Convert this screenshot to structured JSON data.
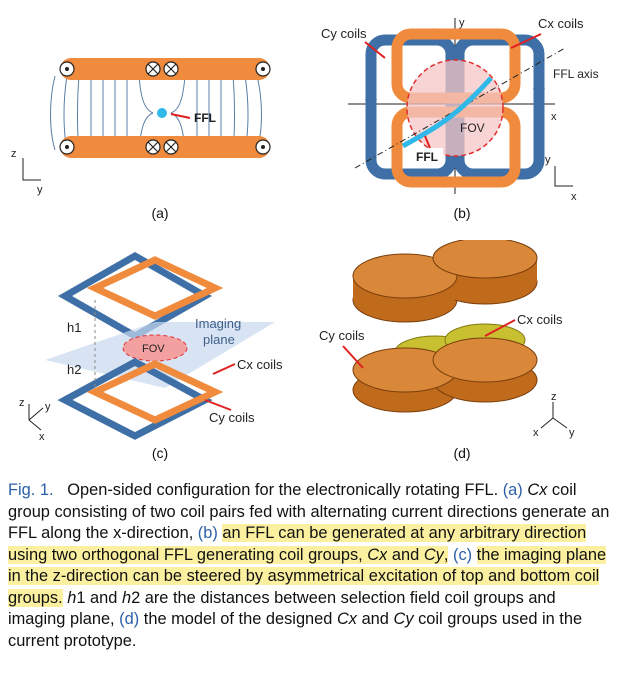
{
  "panel_a": {
    "label": "FFL",
    "axis_z": "z",
    "axis_y": "y",
    "sublabel": "(a)"
  },
  "panel_b": {
    "cy_label": "Cy coils",
    "cx_label": "Cx coils",
    "ffl_axis": "FFL axis",
    "fov": "FOV",
    "ffl": "FFL",
    "axis_y": "y",
    "axis_x": "x",
    "sublabel": "(b)"
  },
  "panel_c": {
    "h1": "h1",
    "h2": "h2",
    "imaging": "Imaging",
    "plane": "plane",
    "fov": "FOV",
    "cx_label": "Cx coils",
    "cy_label": "Cy coils",
    "axis_z": "z",
    "axis_y": "y",
    "axis_x": "x",
    "sublabel": "(c)"
  },
  "panel_d": {
    "cy_label": "Cy coils",
    "cx_label": "Cx coils",
    "axis_z": "z",
    "axis_x": "x",
    "axis_y": "y",
    "sublabel": "(d)"
  },
  "caption": {
    "fig": "Fig. 1.",
    "t1": "Open-sided configuration for the electronically rotating FFL.",
    "a": "(a)",
    "t2_i": "Cx",
    "t2": " coil group consisting of two coil pairs fed with alternating current directions generate an FFL along the x-direction, ",
    "b": "(b)",
    "t3": "an FFL can be generated at any arbitrary direction using two orthogonal FFL generating coil groups, ",
    "t3_i1": "Cx",
    "t3_and": " and ",
    "t3_i2": "Cy",
    "t3_end": ",",
    "c": "(c)",
    "t4": "the imaging plane in the z-direction can be steered by asymmetrical excitation of top and bottom coil groups.",
    "t5_i1": "h",
    "t5a": "1 and ",
    "t5_i2": "h",
    "t5b": "2 are the distances between selection field coil groups and imaging plane, ",
    "d": "(d)",
    "t6": " the model of the designed ",
    "t6_i1": "Cx",
    "t6_and": " and ",
    "t6_i2": "Cy",
    "t6_end": " coil groups used in the current prototype."
  }
}
